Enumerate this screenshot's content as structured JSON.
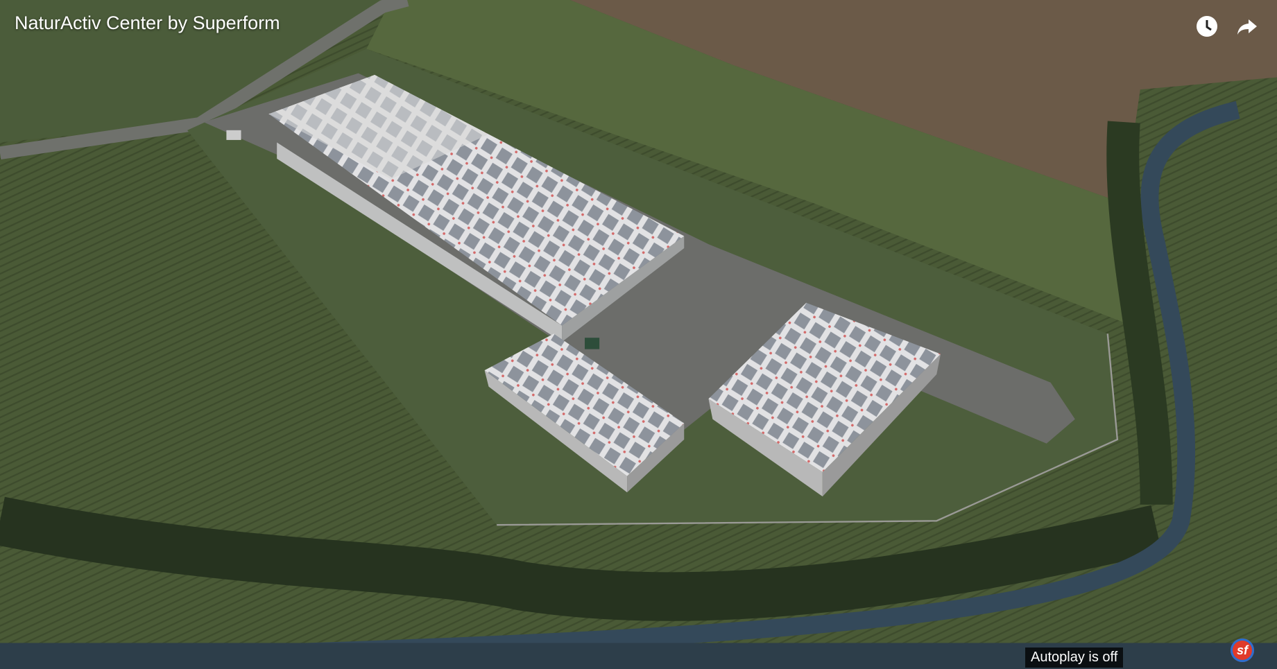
{
  "header": {
    "title": "NaturActiv Center by Superform"
  },
  "player": {
    "autoplay_notice": "Autoplay is off",
    "logo": "sf"
  }
}
